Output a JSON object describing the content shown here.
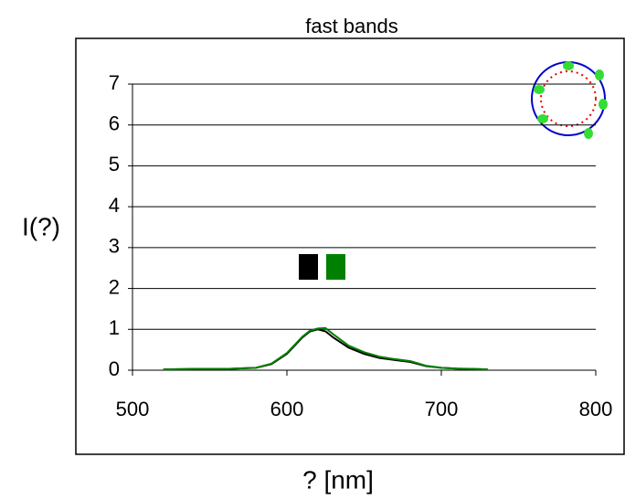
{
  "chart_data": {
    "type": "line",
    "title": "fast bands",
    "xlabel": "? [nm]",
    "ylabel": "I(?)",
    "x": [
      520,
      540,
      560,
      580,
      590,
      600,
      605,
      610,
      615,
      620,
      625,
      630,
      640,
      650,
      660,
      670,
      680,
      690,
      700,
      710,
      720,
      730
    ],
    "series": [
      {
        "color": "#000000",
        "values": [
          0.02,
          0.03,
          0.03,
          0.06,
          0.15,
          0.4,
          0.6,
          0.8,
          0.95,
          1.0,
          0.95,
          0.8,
          0.55,
          0.4,
          0.3,
          0.25,
          0.2,
          0.1,
          0.06,
          0.04,
          0.03,
          0.02
        ]
      },
      {
        "color": "#008000",
        "values": [
          0.02,
          0.03,
          0.03,
          0.06,
          0.16,
          0.42,
          0.62,
          0.82,
          0.97,
          1.02,
          1.03,
          0.88,
          0.6,
          0.44,
          0.33,
          0.27,
          0.22,
          0.11,
          0.06,
          0.04,
          0.03,
          0.02
        ]
      }
    ],
    "xlim": [
      500,
      800
    ],
    "xticks": [
      500,
      600,
      700,
      800
    ],
    "ylim": [
      0,
      7
    ],
    "yticks": [
      0,
      1,
      2,
      3,
      4,
      5,
      6,
      7
    ],
    "grid": true
  }
}
